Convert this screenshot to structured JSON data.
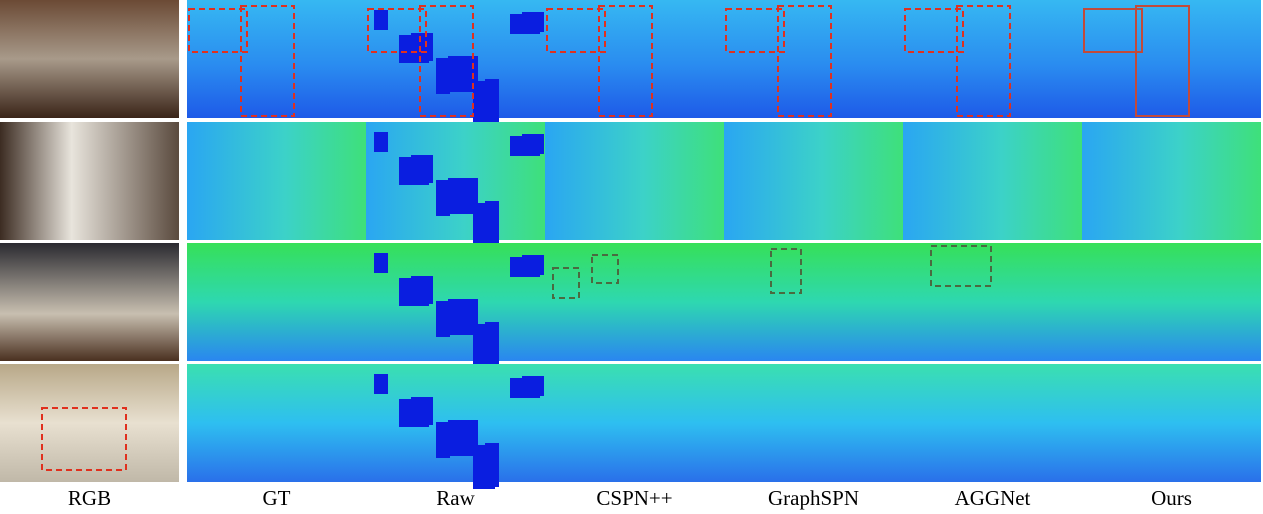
{
  "columns": [
    "RGB",
    "GT",
    "Raw",
    "CSPN++",
    "GraphSPN",
    "AGGNet",
    "Ours"
  ]
}
